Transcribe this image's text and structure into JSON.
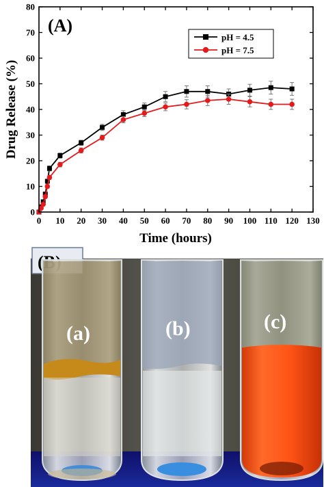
{
  "panel_a_label": "(A)",
  "panel_b_label": "(B)",
  "colors": {
    "ph45": "#000000",
    "ph75": "#e41a1c"
  },
  "chart_data": {
    "type": "line",
    "title": "",
    "xlabel": "Time (hours)",
    "ylabel": "Drug Release (%)",
    "xlim": [
      0,
      130
    ],
    "ylim": [
      0,
      80
    ],
    "xticks": [
      0,
      10,
      20,
      30,
      40,
      50,
      60,
      70,
      80,
      90,
      100,
      110,
      120,
      130
    ],
    "yticks": [
      0,
      10,
      20,
      30,
      40,
      50,
      60,
      70,
      80
    ],
    "legend_position": "upper-right",
    "x": [
      0,
      1,
      2,
      3,
      4,
      5,
      10,
      20,
      30,
      40,
      50,
      60,
      70,
      80,
      90,
      100,
      110,
      120
    ],
    "series": [
      {
        "name": "pH = 4.5",
        "marker": "square",
        "color": "#000000",
        "values": [
          0,
          2,
          4,
          7,
          12,
          17,
          22,
          27,
          33,
          38,
          41,
          45,
          47,
          47,
          46,
          47.5,
          48.5,
          48
        ],
        "errors": [
          0,
          0.5,
          0.5,
          0.7,
          0.8,
          1,
          1,
          1,
          1.2,
          1.5,
          1.5,
          2,
          2.2,
          2.2,
          2,
          2.3,
          2.5,
          2.5
        ]
      },
      {
        "name": "pH = 7.5",
        "marker": "circle",
        "color": "#e41a1c",
        "values": [
          0,
          1.5,
          3,
          6,
          10,
          13.5,
          18.5,
          24,
          29,
          36,
          38.5,
          41,
          42,
          43.5,
          44,
          43,
          42,
          42
        ],
        "errors": [
          0,
          0.5,
          0.5,
          0.6,
          0.7,
          0.8,
          0.9,
          1,
          1,
          1.2,
          1.3,
          1.5,
          1.8,
          2,
          2,
          2,
          2,
          2
        ]
      }
    ]
  },
  "photo": {
    "tube_labels": [
      "(a)",
      "(b)",
      "(c)"
    ]
  }
}
